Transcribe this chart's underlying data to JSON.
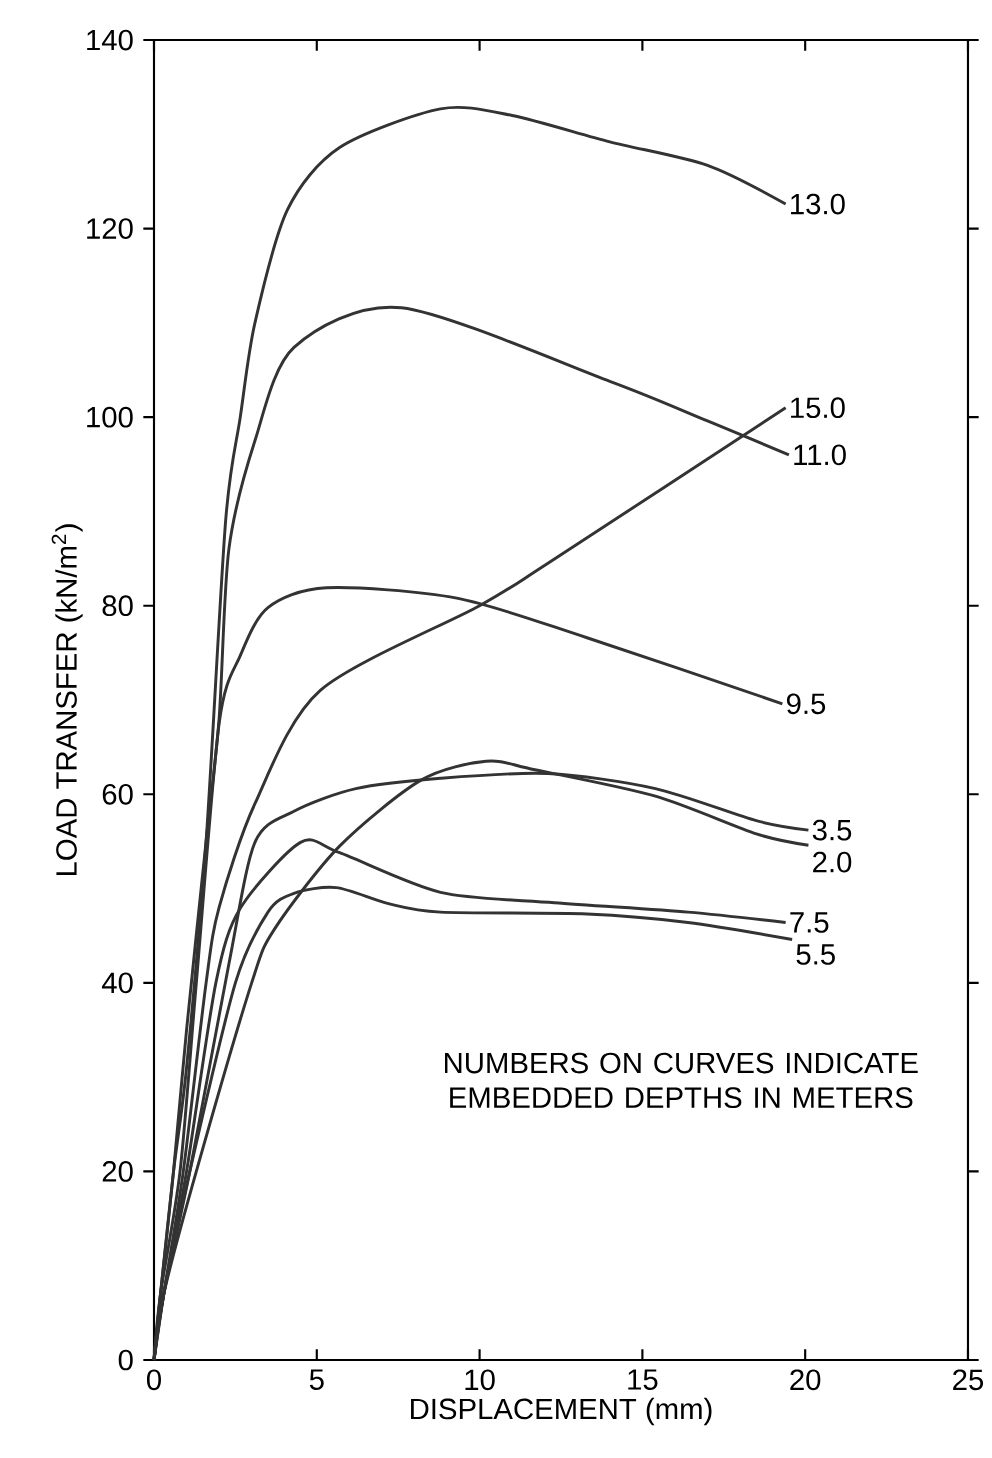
{
  "chart_data": {
    "type": "line",
    "xlabel": "DISPLACEMENT (mm)",
    "ylabel": "LOAD TRANSFER (kN/m$^{2}$)",
    "xlim": [
      0,
      25
    ],
    "ylim": [
      0,
      140
    ],
    "xticks": [
      0,
      5,
      10,
      15,
      20,
      25
    ],
    "yticks": [
      0,
      20,
      40,
      60,
      80,
      100,
      120,
      140
    ],
    "grid": false,
    "legend": false,
    "marker": "none",
    "line_style": "solid",
    "annotations": [
      "NUMBERS ON CURVES INDICATE EMBEDDED DEPTHS IN METERS"
    ],
    "series": [
      {
        "name": "13.0",
        "color": "#333333",
        "x": [
          0,
          0.2,
          0.6,
          1.0,
          1.6,
          2.2,
          2.65,
          3.1,
          4.1,
          5.7,
          8.8,
          11,
          14,
          17,
          19.4
        ],
        "values": [
          0,
          7,
          20,
          31,
          55,
          89,
          100,
          110,
          122,
          128.6,
          132.7,
          132,
          129.2,
          126.7,
          122.6
        ]
      },
      {
        "name": "15.0",
        "color": "#333333",
        "x": [
          0,
          0.3,
          0.9,
          1.6,
          2.0,
          3.1,
          5.1,
          10,
          12.1,
          19.4
        ],
        "values": [
          0,
          7,
          20,
          40,
          48,
          59,
          71,
          80,
          84.5,
          101
        ]
      },
      {
        "name": "11.0",
        "color": "#333333",
        "x": [
          0,
          0.2,
          0.6,
          1.0,
          1.6,
          2.0,
          2.3,
          3.1,
          4.3,
          7.6,
          14,
          17,
          19.5
        ],
        "values": [
          0,
          7,
          20,
          35,
          55,
          68,
          86,
          97.5,
          107.4,
          111.6,
          103.8,
          99.6,
          96
        ]
      },
      {
        "name": "9.5",
        "color": "#333333",
        "x": [
          0,
          0.2,
          0.8,
          1.3,
          2.0,
          2.65,
          3.5,
          5.3,
          9.3,
          13.3,
          19.3
        ],
        "values": [
          0,
          7,
          20,
          40,
          67.5,
          74.7,
          79.8,
          81.9,
          80.8,
          76.6,
          69.6
        ]
      },
      {
        "name": "3.5",
        "color": "#333333",
        "x": [
          0,
          0.3,
          1.1,
          2.3,
          3.1,
          4.3,
          6.2,
          8.8,
          12.1,
          15.4,
          18.5,
          20.1
        ],
        "values": [
          0,
          7,
          20,
          42,
          54.9,
          58.2,
          60.6,
          61.7,
          62.2,
          60.6,
          57.2,
          56.2
        ]
      },
      {
        "name": "2.0",
        "color": "#333333",
        "x": [
          0,
          0.3,
          1.3,
          3.0,
          3.7,
          5.7,
          8.2,
          10.2,
          11.7,
          15.4,
          18.5,
          20.1
        ],
        "values": [
          0,
          7,
          20,
          40,
          45.7,
          54.5,
          61.5,
          63.5,
          62.6,
          59.8,
          55.8,
          54.6
        ]
      },
      {
        "name": "7.5",
        "color": "#333333",
        "x": [
          0,
          0.3,
          1.0,
          1.9,
          2.65,
          4.5,
          5.7,
          8.8,
          12.3,
          16.4,
          19.4
        ],
        "values": [
          0,
          7,
          20,
          40,
          47.9,
          54.9,
          53.8,
          49.6,
          48.5,
          47.5,
          46.4
        ]
      },
      {
        "name": "5.5",
        "color": "#333333",
        "x": [
          0,
          0.3,
          1.1,
          2.5,
          3.5,
          4.3,
          5.6,
          7.2,
          8.8,
          13.3,
          16.4,
          19.6
        ],
        "values": [
          0,
          7,
          20,
          40,
          47.5,
          49.5,
          50.1,
          48.4,
          47.5,
          47.3,
          46.4,
          44.6
        ]
      }
    ]
  }
}
